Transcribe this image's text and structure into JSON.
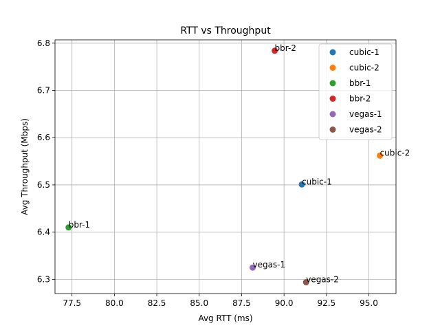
{
  "chart_data": {
    "type": "scatter",
    "title": "RTT vs Throughput",
    "xlabel": "Avg RTT (ms)",
    "ylabel": "Avg Throughput (Mbps)",
    "xlim": [
      76.5,
      96.6
    ],
    "ylim": [
      6.27,
      6.807
    ],
    "xticks": [
      77.5,
      80.0,
      82.5,
      85.0,
      87.5,
      90.0,
      92.5,
      95.0
    ],
    "xtick_labels": [
      "77.5",
      "80.0",
      "82.5",
      "85.0",
      "87.5",
      "90.0",
      "92.5",
      "95.0"
    ],
    "yticks": [
      6.3,
      6.4,
      6.5,
      6.6,
      6.7,
      6.8
    ],
    "ytick_labels": [
      "6.3",
      "6.4",
      "6.5",
      "6.6",
      "6.7",
      "6.8"
    ],
    "grid": true,
    "legend_position": "top-right",
    "series": [
      {
        "name": "cubic-1",
        "color": "#1f77b4",
        "x": 91.05,
        "y": 6.501,
        "label": "cubic-1"
      },
      {
        "name": "cubic-2",
        "color": "#ff7f0e",
        "x": 95.65,
        "y": 6.562,
        "label": "cubic-2"
      },
      {
        "name": "bbr-1",
        "color": "#2ca02c",
        "x": 77.3,
        "y": 6.41,
        "label": "bbr-1"
      },
      {
        "name": "bbr-2",
        "color": "#d62728",
        "x": 89.45,
        "y": 6.784,
        "label": "bbr-2"
      },
      {
        "name": "vegas-1",
        "color": "#9467bd",
        "x": 88.15,
        "y": 6.325,
        "label": "vegas-1"
      },
      {
        "name": "vegas-2",
        "color": "#8c564b",
        "x": 91.3,
        "y": 6.294,
        "label": "vegas-2"
      }
    ]
  }
}
